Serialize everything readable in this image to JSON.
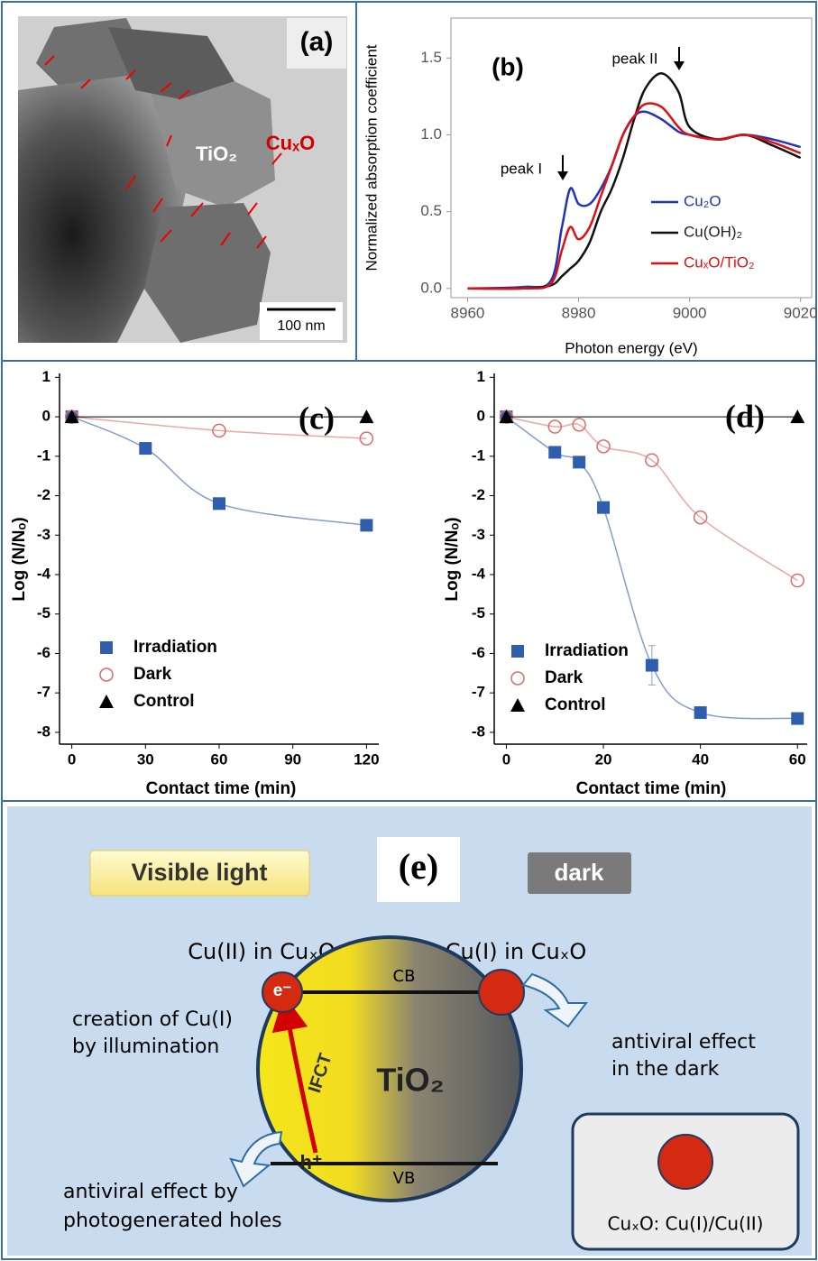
{
  "panel_a": {
    "label": "(a)",
    "particle_label": "CuₓO",
    "matrix_label": "TiO₂",
    "scale_bar": "100 nm"
  },
  "chart_data": [
    {
      "type": "line",
      "label": "(b)",
      "xlabel": "Photon energy (eV)",
      "ylabel": "Normalized absorption coefficient",
      "annotations": [
        "peak I",
        "peak II"
      ],
      "x": [
        8960,
        8970,
        8975,
        8977,
        8978.5,
        8980,
        8982,
        8984,
        8986,
        8988,
        8990,
        8992,
        8995,
        8998,
        9000,
        9005,
        9010,
        9015,
        9020
      ],
      "xlim": [
        8957,
        9022
      ],
      "xticks": [
        8960,
        8980,
        9000,
        9020
      ],
      "ylim": [
        -0.06,
        1.76
      ],
      "yticks": [
        {
          "value": 0,
          "label": "0.0"
        },
        0.5,
        {
          "value": 1,
          "label": "1.0"
        },
        1.5
      ],
      "legend": "lower right",
      "series": [
        {
          "name": "Cu₂O",
          "color": "#2233bb",
          "values": [
            0,
            0.01,
            0.05,
            0.4,
            0.65,
            0.55,
            0.55,
            0.65,
            0.8,
            1.0,
            1.12,
            1.15,
            1.1,
            1.02,
            1.0,
            0.97,
            1.0,
            0.97,
            0.92
          ]
        },
        {
          "name": "Cu(OH)₂",
          "color": "#111111",
          "values": [
            0,
            0,
            0.02,
            0.08,
            0.13,
            0.18,
            0.3,
            0.5,
            0.65,
            0.85,
            1.1,
            1.3,
            1.4,
            1.28,
            1.05,
            0.97,
            1.0,
            0.93,
            0.85
          ]
        },
        {
          "name": "CuₓO/TiO₂",
          "color": "#dd1111",
          "values": [
            0,
            0,
            0.03,
            0.25,
            0.4,
            0.32,
            0.4,
            0.6,
            0.8,
            1.0,
            1.12,
            1.2,
            1.18,
            1.05,
            1.0,
            0.97,
            1.0,
            0.95,
            0.88
          ]
        }
      ]
    },
    {
      "type": "scatter",
      "label": "(c)",
      "xlabel": "Contact time (min)",
      "ylabel": "Log (N/Nₒ)",
      "xlim": [
        -5,
        125
      ],
      "xticks": [
        0,
        30,
        60,
        90,
        120
      ],
      "ylim": [
        -8.3,
        1.1
      ],
      "yticks": [
        1,
        0,
        -1,
        -2,
        -3,
        -4,
        -5,
        -6,
        -7,
        -8
      ],
      "legend": "lower left",
      "series": [
        {
          "name": "Irradiation",
          "color": "#2f5eae",
          "marker": "square",
          "x": [
            0,
            30,
            60,
            120
          ],
          "values": [
            0,
            -0.8,
            -2.2,
            -2.75
          ]
        },
        {
          "name": "Dark",
          "color": "#e06a66",
          "marker": "open-circle",
          "x": [
            0,
            60,
            120
          ],
          "values": [
            0,
            -0.35,
            -0.55
          ]
        },
        {
          "name": "Control",
          "color": "#000000",
          "marker": "triangle",
          "x": [
            0,
            120
          ],
          "values": [
            0,
            0
          ]
        }
      ]
    },
    {
      "type": "scatter",
      "label": "(d)",
      "xlabel": "Contact time (min)",
      "ylabel": "Log (N/Nₒ)",
      "xlim": [
        -2.5,
        62
      ],
      "xticks": [
        0,
        20,
        40,
        60
      ],
      "ylim": [
        -8.3,
        1.1
      ],
      "yticks": [
        1,
        0,
        -1,
        -2,
        -3,
        -4,
        -5,
        -6,
        -7,
        -8
      ],
      "legend": "lower left",
      "series": [
        {
          "name": "Irradiation",
          "color": "#2f5eae",
          "marker": "square",
          "x": [
            0,
            10,
            15,
            20,
            30,
            40,
            60
          ],
          "values": [
            0,
            -0.9,
            -1.15,
            -2.3,
            -6.3,
            -7.5,
            -7.65
          ],
          "errors": [
            null,
            null,
            null,
            null,
            0.5,
            null,
            null
          ]
        },
        {
          "name": "Dark",
          "color": "#e06a66",
          "marker": "open-circle",
          "x": [
            0,
            10,
            15,
            20,
            30,
            40,
            60
          ],
          "values": [
            0,
            -0.25,
            -0.2,
            -0.75,
            -1.1,
            -2.55,
            -4.15
          ]
        },
        {
          "name": "Control",
          "color": "#000000",
          "marker": "triangle",
          "x": [
            0,
            60
          ],
          "values": [
            0,
            0
          ]
        }
      ]
    }
  ],
  "panel_e": {
    "label": "(e)",
    "visible_light": "Visible light",
    "dark": "dark",
    "cu2_label": "Cu(II) in CuₓO",
    "cu1_label": "Cu(I) in CuₓO",
    "creation": [
      "creation of Cu(I)",
      "by illumination"
    ],
    "antiviral_dark": [
      "antiviral effect",
      "in the dark"
    ],
    "antiviral_holes": [
      "antiviral effect by",
      "photogenerated holes"
    ],
    "cb": "CB",
    "vb": "VB",
    "electron": "e⁻",
    "hole": "h⁺",
    "ifct": "IFCT",
    "tio2": "TiO₂",
    "legend": "CuₓO: Cu(I)/Cu(II)"
  }
}
